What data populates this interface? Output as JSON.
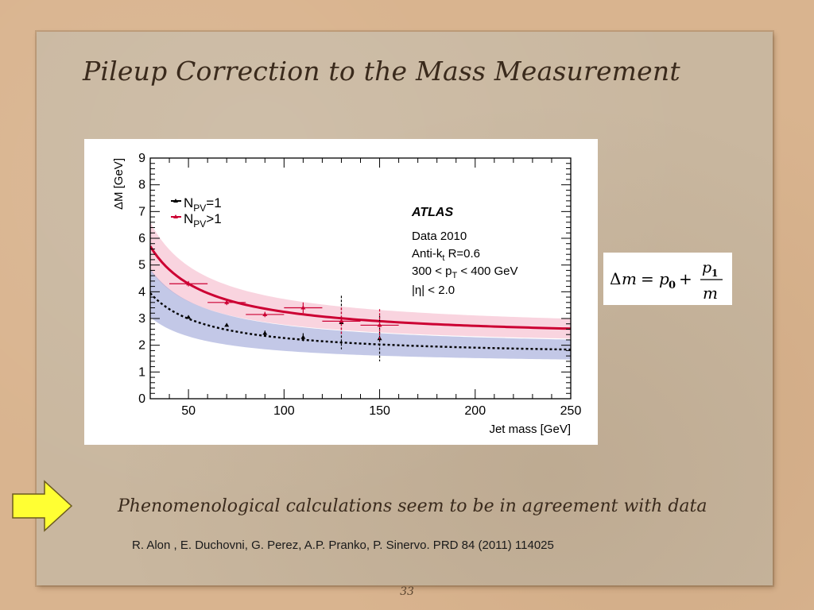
{
  "slide": {
    "title": "Pileup Correction to the Mass Measurement",
    "statement": "Phenomenological calculations seem to be in agreement with data",
    "reference": "R. Alon , E. Duchovni, G. Perez, A.P. Pranko, P. Sinervo. PRD 84 (2011) 114025",
    "page_number": "33",
    "arrow_icon": "right-arrow-icon",
    "arrow_color": "#ffff33"
  },
  "formula": {
    "delta": "Δ",
    "m": "m",
    "equals": "=",
    "p": "p",
    "sub0": "0",
    "plus": "+",
    "sub1": "1"
  },
  "chart_data": {
    "type": "scatter",
    "xlabel": "Jet mass [GeV]",
    "ylabel": "ΔM [GeV]",
    "xlim": [
      30,
      250
    ],
    "ylim": [
      0,
      9
    ],
    "x_ticks": [
      50,
      100,
      150,
      200,
      250
    ],
    "y_ticks": [
      0,
      1,
      2,
      3,
      4,
      5,
      6,
      7,
      8,
      9
    ],
    "grid": false,
    "legend_position": "top-left",
    "annotations": {
      "experiment": "ATLAS",
      "lines": [
        "Data 2010",
        "Anti-k",
        "t",
        " R=0.6",
        "300 < p",
        "T",
        " < 400 GeV",
        "|η| < 2.0"
      ]
    },
    "legend": [
      {
        "n": "N",
        "sub": "PV",
        "rel": "=1",
        "color": "#000000"
      },
      {
        "n": "N",
        "sub": "PV",
        "rel": ">1",
        "color": "#cc0033"
      }
    ],
    "series": [
      {
        "label": "NPV=1",
        "color": "#000000",
        "band_color": "#7b85c9",
        "fit": {
          "p0": 1.55,
          "p1": 72
        },
        "points": [
          {
            "x": 50,
            "y": 3.05,
            "xerr": 0,
            "yerr": 0.05
          },
          {
            "x": 70,
            "y": 2.75,
            "xerr": 0,
            "yerr": 0.05
          },
          {
            "x": 90,
            "y": 2.45,
            "xerr": 0,
            "yerr": 0.1
          },
          {
            "x": 110,
            "y": 2.3,
            "xerr": 0,
            "yerr": 0.15
          },
          {
            "x": 130,
            "y": 2.85,
            "xerr": 0,
            "yerr": 1.0
          },
          {
            "x": 150,
            "y": 2.25,
            "xerr": 0,
            "yerr": 0.85
          }
        ]
      },
      {
        "label": "NPV>1",
        "color": "#cc0033",
        "band_color": "#f2a0b8",
        "fit": {
          "p0": 2.2,
          "p1": 105
        },
        "points": [
          {
            "x": 50,
            "y": 4.3,
            "xerr": 10,
            "yerr": 0.1
          },
          {
            "x": 70,
            "y": 3.6,
            "xerr": 10,
            "yerr": 0.1
          },
          {
            "x": 90,
            "y": 3.15,
            "xerr": 10,
            "yerr": 0.1
          },
          {
            "x": 110,
            "y": 3.4,
            "xerr": 10,
            "yerr": 0.2
          },
          {
            "x": 130,
            "y": 2.9,
            "xerr": 10,
            "yerr": 0.5
          },
          {
            "x": 150,
            "y": 2.75,
            "xerr": 10,
            "yerr": 0.6
          }
        ]
      }
    ]
  }
}
